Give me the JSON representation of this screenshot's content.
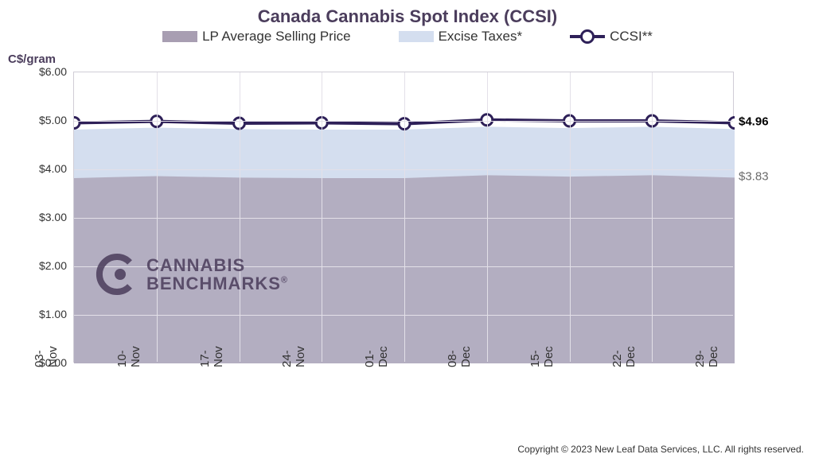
{
  "chart": {
    "type": "area-line",
    "title": "Canada Cannabis Spot Index (CCSI)",
    "y_axis_label": "C$/gram",
    "background_color": "#ffffff",
    "grid_color": "#e3e0e8",
    "border_color": "#d0cdd6",
    "title_color": "#4b3d5c",
    "title_fontsize": 22,
    "label_fontsize": 15,
    "ylim": [
      0,
      6
    ],
    "ytick_step": 1,
    "ytick_format": "$#.00",
    "y_ticks": [
      "$0.00",
      "$1.00",
      "$2.00",
      "$3.00",
      "$4.00",
      "$5.00",
      "$6.00"
    ],
    "categories": [
      "03-Nov",
      "10-Nov",
      "17-Nov",
      "24-Nov",
      "01-Dec",
      "08-Dec",
      "15-Dec",
      "22-Dec",
      "29-Dec"
    ],
    "series": [
      {
        "name": "LP Average Selling Price",
        "type": "area",
        "color": "#a89eb2",
        "opacity": 0.75,
        "values": [
          3.82,
          3.86,
          3.83,
          3.82,
          3.82,
          3.88,
          3.85,
          3.88,
          3.83
        ]
      },
      {
        "name": "Excise Taxes*",
        "type": "area-stacked",
        "color": "#d4deef",
        "opacity": 1,
        "stack_top_values": [
          4.82,
          4.86,
          4.83,
          4.82,
          4.82,
          4.88,
          4.85,
          4.88,
          4.83
        ]
      },
      {
        "name": "CCSI**",
        "type": "line",
        "line_color": "#2e2058",
        "line_width": 4,
        "marker_fill": "#ffffff",
        "marker_stroke": "#2e2058",
        "marker_stroke_width": 3,
        "marker_radius": 7,
        "values": [
          4.96,
          4.99,
          4.95,
          4.96,
          4.94,
          5.02,
          5.0,
          5.0,
          4.96
        ]
      }
    ],
    "end_labels": [
      {
        "text": "$4.96",
        "value": 4.96,
        "color": "#000000",
        "bold": true
      },
      {
        "text": "$3.83",
        "value": 3.83,
        "color": "#6b6b6b",
        "bold": false
      }
    ],
    "legend": [
      {
        "label": "LP Average Selling Price",
        "swatch": "box",
        "color": "#a89eb2"
      },
      {
        "label": "Excise Taxes*",
        "swatch": "box",
        "color": "#d4deef"
      },
      {
        "label": "CCSI**",
        "swatch": "line-marker",
        "color": "#2e2058"
      }
    ],
    "watermark": {
      "brand_line1": "CANNABIS",
      "brand_line2": "BENCHMARKS",
      "tm": "®",
      "color": "#4b3d5c"
    },
    "copyright": "Copyright © 2023 New Leaf Data Services, LLC. All rights reserved."
  }
}
